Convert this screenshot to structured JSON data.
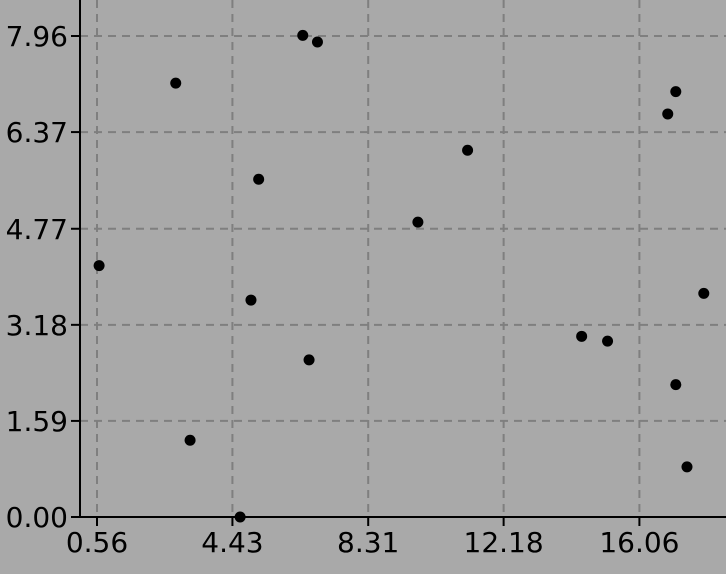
{
  "chart_data": {
    "type": "scatter",
    "title": "",
    "xlabel": "",
    "ylabel": "",
    "xlim": [
      0.25,
      18.2
    ],
    "ylim": [
      0.0,
      8.4
    ],
    "x_ticks": [
      0.56,
      4.43,
      8.31,
      12.18,
      16.06
    ],
    "x_tick_labels": [
      "0.56",
      "4.43",
      "8.31",
      "12.18",
      "16.06"
    ],
    "y_ticks": [
      0.0,
      1.59,
      3.18,
      4.77,
      6.37,
      7.96
    ],
    "y_tick_labels": [
      "0.00",
      "1.59",
      "3.18",
      "4.77",
      "6.37",
      "7.96"
    ],
    "grid": true,
    "colors": {
      "background": "#a9a9a9",
      "grid": "#7f7f7f",
      "marker": "#000000",
      "axis": "#000000"
    },
    "series": [
      {
        "points": [
          {
            "x": 0.62,
            "y": 4.16
          },
          {
            "x": 2.81,
            "y": 7.18
          },
          {
            "x": 3.22,
            "y": 1.27
          },
          {
            "x": 4.65,
            "y": 0.0
          },
          {
            "x": 4.96,
            "y": 3.59
          },
          {
            "x": 5.18,
            "y": 5.59
          },
          {
            "x": 6.44,
            "y": 7.97
          },
          {
            "x": 6.62,
            "y": 2.6
          },
          {
            "x": 6.86,
            "y": 7.86
          },
          {
            "x": 9.73,
            "y": 4.88
          },
          {
            "x": 11.15,
            "y": 6.07
          },
          {
            "x": 14.41,
            "y": 2.99
          },
          {
            "x": 15.15,
            "y": 2.91
          },
          {
            "x": 16.87,
            "y": 6.67
          },
          {
            "x": 17.1,
            "y": 7.04
          },
          {
            "x": 17.1,
            "y": 2.19
          },
          {
            "x": 17.42,
            "y": 0.83
          },
          {
            "x": 17.9,
            "y": 3.7
          }
        ]
      }
    ]
  }
}
